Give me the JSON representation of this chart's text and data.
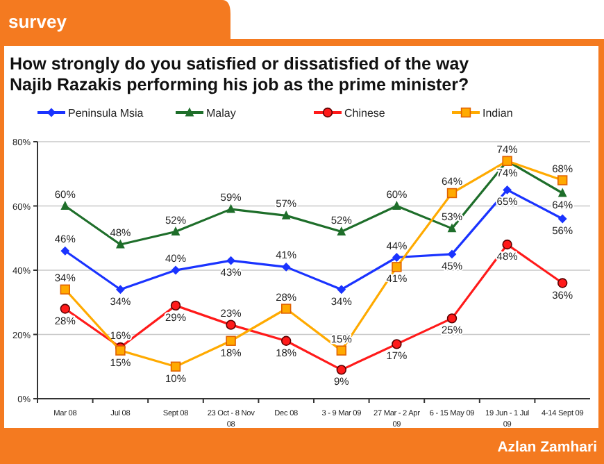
{
  "chart_data": {
    "type": "line",
    "title": "How strongly do you satisfied or dissatisfied of the way Najib Razakis performing his job as the prime minister?",
    "annotations": [
      "survey",
      "Azlan Zamhari"
    ],
    "categories": [
      "Mar 08",
      "Jul 08",
      "Sept 08",
      "23 Oct - 8 Nov 08",
      "Dec 08",
      "3 - 9 Mar 09",
      "27 Mar - 2 Apr 09",
      "6 - 15 May 09",
      "19 Jun - 1 Jul 09",
      "4-14 Sept 09"
    ],
    "series": [
      {
        "name": "Peninsula Msia",
        "color": "#1a33ff",
        "marker": "diamond",
        "values": [
          46,
          34,
          40,
          43,
          41,
          34,
          44,
          45,
          65,
          56
        ],
        "value_labels": [
          "46%",
          "34%",
          "40%",
          "43%",
          "41%",
          "34%",
          "44%",
          "45%",
          "65%",
          "56%"
        ]
      },
      {
        "name": "Malay",
        "color": "#1e6e2a",
        "marker": "triangle",
        "values": [
          60,
          48,
          52,
          59,
          57,
          52,
          60,
          53,
          74,
          64
        ],
        "value_labels": [
          "60%",
          "48%",
          "52%",
          "59%",
          "57%",
          "52%",
          "60%",
          "53%",
          "74%",
          "64%"
        ]
      },
      {
        "name": "Chinese",
        "color": "#ff1a1a",
        "marker": "circle",
        "values": [
          28,
          16,
          29,
          23,
          18,
          9,
          17,
          25,
          48,
          36
        ],
        "value_labels": [
          "28%",
          "16%",
          "29%",
          "23%",
          "18%",
          "9%",
          "17%",
          "25%",
          "48%",
          "36%"
        ]
      },
      {
        "name": "Indian",
        "color": "#ffaa00",
        "marker": "square",
        "values": [
          34,
          15,
          10,
          18,
          28,
          15,
          41,
          64,
          74,
          68
        ],
        "value_labels": [
          "34%",
          "15%",
          "10%",
          "18%",
          "28%",
          "15%",
          "41%",
          "64%",
          "74%",
          "68%"
        ]
      }
    ],
    "ylim": [
      0,
      80
    ],
    "yticks": [
      {
        "value": 0,
        "label": "0%"
      },
      {
        "value": 20,
        "label": "20%"
      },
      {
        "value": 40,
        "label": "40%"
      },
      {
        "value": 60,
        "label": "60%"
      },
      {
        "value": 80,
        "label": "80%"
      }
    ],
    "grid": "y",
    "legend": "top",
    "line_style": "solid"
  }
}
